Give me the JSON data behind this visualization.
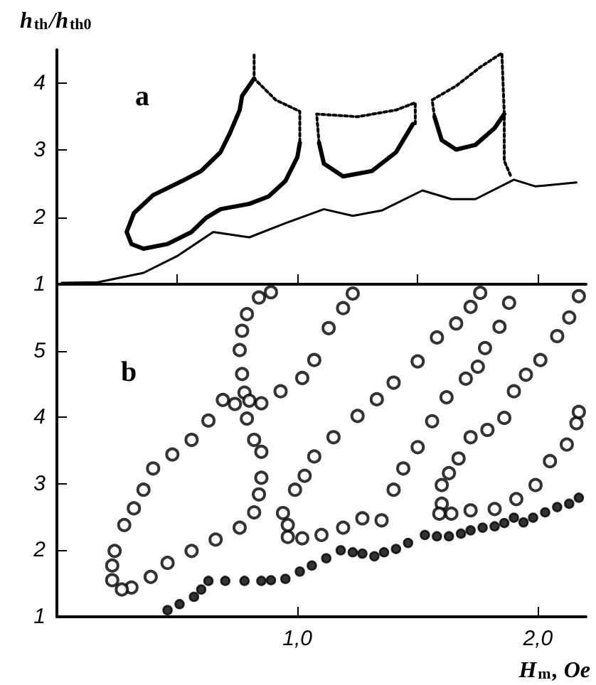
{
  "chart_data": [
    {
      "type": "line",
      "ylabel": "h$_{th}$/h$_{th0}$",
      "annotations": [
        "a"
      ],
      "xlim": [
        0,
        2.2
      ],
      "ylim": [
        1,
        4.5
      ],
      "xticks": [
        {
          "value": 0.5,
          "label": null
        },
        {
          "value": 1,
          "label": null
        },
        {
          "value": 1.5,
          "label": null
        },
        {
          "value": 2,
          "label": null
        }
      ],
      "yticks": [
        1,
        2,
        3,
        4
      ],
      "tick_labels": "y",
      "marker": "none",
      "series": [
        {
          "color": "#000000",
          "line_style": "solid",
          "x": [
            0.02,
            0.17,
            0.36,
            0.5,
            0.65,
            0.8,
            0.95,
            1.11,
            1.23,
            1.35,
            1.52,
            1.64,
            1.74,
            1.9,
            1.99,
            2.16
          ],
          "values": [
            1.02,
            1.03,
            1.17,
            1.42,
            1.78,
            1.7,
            1.91,
            2.12,
            2.02,
            2.1,
            2.4,
            2.27,
            2.27,
            2.56,
            2.46,
            2.52
          ]
        },
        {
          "color": "#000000",
          "line_style": "solid",
          "x": [
            1.01,
            1.0,
            0.95,
            0.88,
            0.8,
            0.68,
            0.62,
            0.56,
            0.46,
            0.36,
            0.31,
            0.29,
            0.32,
            0.4,
            0.52,
            0.6,
            0.68,
            0.72,
            0.76,
            0.77,
            0.82
          ],
          "values": [
            3.11,
            2.9,
            2.54,
            2.31,
            2.2,
            2.12,
            1.99,
            1.78,
            1.6,
            1.53,
            1.6,
            1.78,
            2.06,
            2.33,
            2.54,
            2.69,
            2.97,
            3.26,
            3.6,
            3.81,
            4.07
          ]
        },
        {
          "color": "#000000",
          "line_style": "dotted",
          "x": [
            0.82,
            0.82,
            0.91,
            1.01,
            1.01
          ],
          "values": [
            4.42,
            4.07,
            3.75,
            3.58,
            3.11
          ]
        },
        {
          "color": "#000000",
          "line_style": "dotted",
          "x": [
            1.09,
            1.08,
            1.25,
            1.41,
            1.49,
            1.49
          ],
          "values": [
            3.11,
            3.54,
            3.5,
            3.6,
            3.71,
            3.39
          ]
        },
        {
          "color": "#000000",
          "line_style": "solid",
          "x": [
            1.09,
            1.11,
            1.19,
            1.31,
            1.41,
            1.48
          ],
          "values": [
            3.11,
            2.8,
            2.61,
            2.69,
            2.97,
            3.39
          ]
        },
        {
          "color": "#000000",
          "line_style": "dotted",
          "x": [
            1.57,
            1.56,
            1.66,
            1.76,
            1.85,
            1.86,
            1.86,
            1.89
          ],
          "values": [
            3.5,
            3.75,
            3.96,
            4.24,
            4.45,
            3.54,
            2.84,
            2.59
          ]
        },
        {
          "color": "#000000",
          "line_style": "solid",
          "x": [
            1.57,
            1.6,
            1.66,
            1.74,
            1.82,
            1.86
          ],
          "values": [
            3.5,
            3.15,
            3.01,
            3.08,
            3.33,
            3.54
          ]
        }
      ]
    },
    {
      "type": "scatter",
      "xlabel": "H$_{m}$, Oe",
      "annotations": [
        "b"
      ],
      "xlim": [
        0,
        2.2
      ],
      "ylim": [
        1,
        6
      ],
      "xticks": [
        {
          "value": 1,
          "label": "1,0"
        },
        {
          "value": 2,
          "label": "2,0"
        }
      ],
      "yticks": [
        1,
        2,
        3,
        4,
        5
      ],
      "marker": "circle",
      "series": [
        {
          "color": "#000000",
          "x": [
            0.46,
            0.51,
            0.57,
            0.6,
            0.63,
            0.7,
            0.78,
            0.85,
            0.89,
            0.95,
            1.01,
            1.06,
            1.12,
            1.18,
            1.23,
            1.27,
            1.32,
            1.36,
            1.41,
            1.46,
            1.53,
            1.58,
            1.63,
            1.68,
            1.72,
            1.77,
            1.82,
            1.86,
            1.9,
            1.94,
            1.98,
            2.03,
            2.08,
            2.13,
            2.17
          ],
          "values": [
            1.1,
            1.19,
            1.3,
            1.41,
            1.54,
            1.54,
            1.54,
            1.54,
            1.55,
            1.57,
            1.68,
            1.77,
            1.88,
            2.0,
            1.97,
            1.95,
            1.91,
            1.97,
            2.02,
            2.11,
            2.23,
            2.21,
            2.21,
            2.25,
            2.3,
            2.34,
            2.36,
            2.41,
            2.49,
            2.42,
            2.49,
            2.57,
            2.65,
            2.7,
            2.79
          ]
        },
        {
          "color": "#000000",
          "x": [
            0.23,
            0.23,
            0.24,
            0.28,
            0.32,
            0.36,
            0.4,
            0.48,
            0.56,
            0.63,
            0.69,
            0.74,
            0.79,
            0.82,
            0.85,
            0.85,
            0.84,
            0.82,
            0.76,
            0.66,
            0.56,
            0.46,
            0.39,
            0.31,
            0.27
          ],
          "values": [
            1.55,
            1.77,
            1.99,
            2.38,
            2.63,
            2.91,
            3.23,
            3.44,
            3.66,
            3.95,
            4.26,
            4.2,
            3.98,
            3.66,
            3.48,
            3.09,
            2.84,
            2.57,
            2.34,
            2.16,
            1.99,
            1.81,
            1.6,
            1.44,
            1.41
          ]
        },
        {
          "color": "#000000",
          "x": [
            0.78,
            0.77,
            0.76,
            0.77,
            0.79,
            0.84,
            0.89,
            0.8,
            0.85,
            0.93,
            1.02,
            1.07,
            1.13,
            1.19,
            1.23
          ],
          "values": [
            4.37,
            4.65,
            5.01,
            5.3,
            5.55,
            5.8,
            5.88,
            4.25,
            4.21,
            4.39,
            4.59,
            4.86,
            5.34,
            5.64,
            5.86
          ]
        },
        {
          "color": "#000000",
          "x": [
            0.94,
            0.96,
            1.02,
            1.1,
            1.19,
            1.27,
            1.35,
            1.4,
            1.44,
            1.5,
            1.56,
            1.62,
            1.7,
            1.75,
            1.78,
            1.84,
            1.88,
            0.96,
            0.99,
            1.03,
            1.07,
            1.15,
            1.25,
            1.33,
            1.4,
            1.5,
            1.58,
            1.66,
            1.72,
            1.76
          ],
          "values": [
            2.56,
            2.2,
            2.18,
            2.23,
            2.34,
            2.48,
            2.45,
            2.91,
            3.23,
            3.55,
            3.94,
            4.3,
            4.58,
            4.76,
            5.04,
            5.36,
            5.72,
            2.38,
            2.91,
            3.12,
            3.41,
            3.7,
            4.02,
            4.27,
            4.52,
            4.84,
            5.2,
            5.41,
            5.66,
            5.87
          ]
        },
        {
          "color": "#000000",
          "x": [
            1.6,
            1.59,
            1.64,
            1.72,
            1.82,
            1.91,
            1.99,
            2.05,
            2.12,
            2.16,
            2.17,
            1.6,
            1.63,
            1.67,
            1.72,
            1.79,
            1.86,
            1.9,
            1.95,
            2.01,
            2.08,
            2.13,
            2.17
          ],
          "values": [
            2.7,
            2.55,
            2.55,
            2.6,
            2.62,
            2.77,
            2.98,
            3.34,
            3.59,
            3.91,
            4.08,
            2.98,
            3.16,
            3.38,
            3.7,
            3.81,
            3.99,
            4.39,
            4.64,
            4.86,
            5.22,
            5.5,
            5.82
          ]
        }
      ]
    }
  ]
}
